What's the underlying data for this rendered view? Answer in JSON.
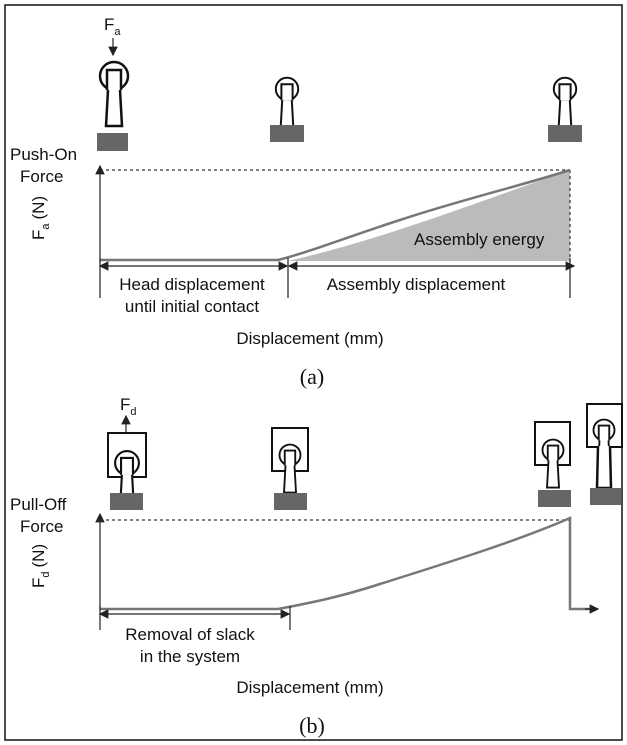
{
  "panels": [
    {
      "force_label": {
        "symbol": "F",
        "subscript": "a"
      },
      "y_title": [
        "Push-On",
        "Force"
      ],
      "y_label": {
        "symbol": "F",
        "subscript": "a",
        "unit": "(N)"
      },
      "area_label": "Assembly energy",
      "segments": [
        [
          "Head displacement",
          "until initial contact"
        ],
        [
          "Assembly displacement"
        ]
      ],
      "x_label": "Displacement (mm)",
      "caption": "(a)"
    },
    {
      "force_label": {
        "symbol": "F",
        "subscript": "d"
      },
      "y_title": [
        "Pull-Off",
        "Force"
      ],
      "y_label": {
        "symbol": "F",
        "subscript": "d",
        "unit": "(N)"
      },
      "segments": [
        [
          "Removal of slack",
          "in the system"
        ]
      ],
      "x_label": "Displacement (mm)",
      "caption": "(b)"
    }
  ]
}
